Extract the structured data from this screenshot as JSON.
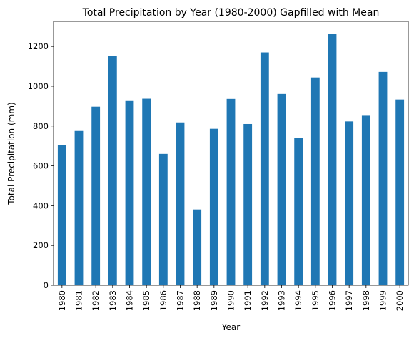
{
  "chart_data": {
    "type": "bar",
    "title": "Total Precipitation by Year (1980-2000) Gapfilled with Mean",
    "xlabel": "Year",
    "ylabel": "Total Precipitation (mm)",
    "categories": [
      "1980",
      "1981",
      "1982",
      "1983",
      "1984",
      "1985",
      "1986",
      "1987",
      "1988",
      "1989",
      "1990",
      "1991",
      "1992",
      "1993",
      "1994",
      "1995",
      "1996",
      "1997",
      "1998",
      "1999",
      "2000"
    ],
    "values": [
      703,
      775,
      897,
      1152,
      929,
      937,
      660,
      818,
      381,
      786,
      936,
      810,
      1170,
      961,
      740,
      1044,
      1263,
      823,
      855,
      1072,
      933
    ],
    "yticks": [
      0,
      200,
      400,
      600,
      800,
      1000,
      1200
    ],
    "ylim": [
      0,
      1326
    ],
    "bar_color": "#1f77b4",
    "grid": false,
    "legend": "none"
  }
}
